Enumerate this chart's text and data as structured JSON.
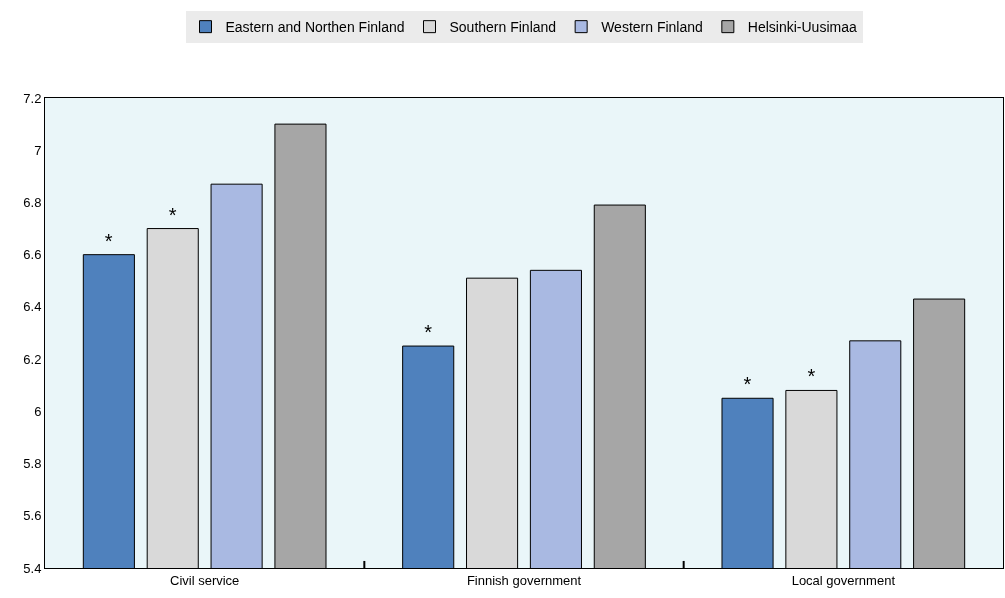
{
  "chart_data": {
    "type": "bar",
    "categories": [
      "Civil service",
      "Finnish government",
      "Local government"
    ],
    "series": [
      {
        "name": "Eastern and Northen Finland",
        "color": "#4f81bd",
        "values": [
          6.6,
          6.25,
          6.05
        ],
        "value_labels": [
          "*",
          "*",
          "*"
        ]
      },
      {
        "name": "Southern Finland",
        "color": "#d9d9d9",
        "values": [
          6.7,
          6.51,
          6.08
        ],
        "value_labels": [
          "*",
          null,
          "*"
        ]
      },
      {
        "name": "Western Finland",
        "color": "#a9b9e2",
        "values": [
          6.87,
          6.54,
          6.27
        ]
      },
      {
        "name": "Helsinki-Uusimaa",
        "color": "#a6a6a6",
        "values": [
          7.1,
          6.79,
          6.43
        ]
      }
    ],
    "ylim": [
      5.4,
      7.2
    ],
    "yticks": [
      5.4,
      5.6,
      5.8,
      6,
      6.2,
      6.4,
      6.6,
      6.8,
      7,
      7.2
    ],
    "grid": false,
    "legend": "top"
  }
}
